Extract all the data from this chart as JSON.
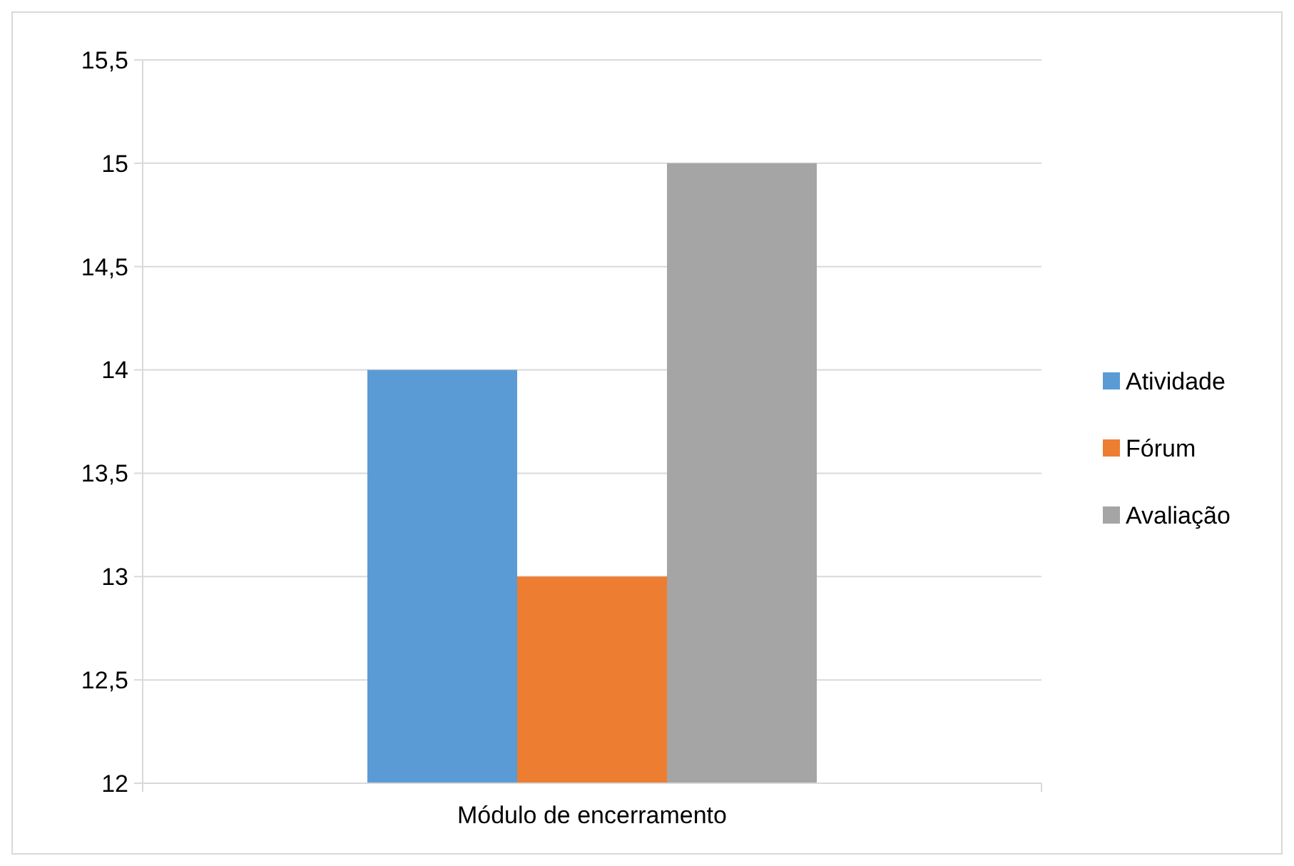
{
  "chart_data": {
    "type": "bar",
    "categories": [
      "Módulo de encerramento"
    ],
    "series": [
      {
        "name": "Atividade",
        "color": "#5b9bd5",
        "values": [
          14
        ]
      },
      {
        "name": "Fórum",
        "color": "#ed7d31",
        "values": [
          13
        ]
      },
      {
        "name": "Avaliação",
        "color": "#a5a5a5",
        "values": [
          15
        ]
      }
    ],
    "ylim": [
      12,
      15.5
    ],
    "yticks": [
      12,
      {
        "value": 12.5,
        "label": "12,5"
      },
      13,
      {
        "value": 13.5,
        "label": "13,5"
      },
      14,
      {
        "value": 14.5,
        "label": "14,5"
      },
      15,
      {
        "value": 15.5,
        "label": "15,5"
      }
    ],
    "grid": "y",
    "legend": "right"
  }
}
